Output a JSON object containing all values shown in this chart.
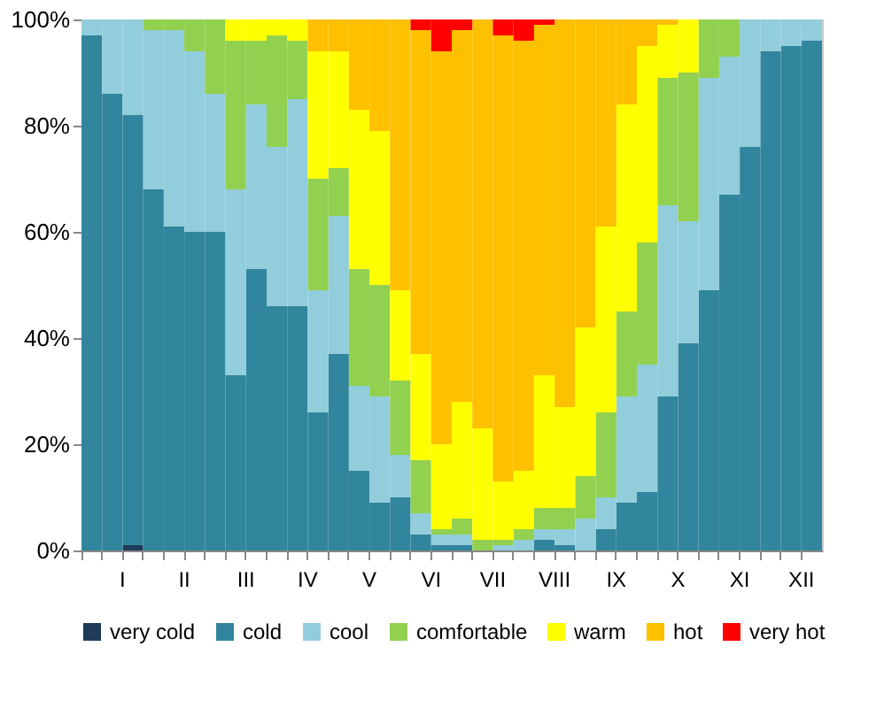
{
  "chart_data": {
    "type": "bar",
    "stacked": true,
    "legend": "bottom",
    "categories": [
      null,
      "I",
      null,
      null,
      "II",
      null,
      null,
      "III",
      null,
      null,
      "IV",
      null,
      null,
      "V",
      null,
      null,
      "VI",
      null,
      null,
      "VII",
      null,
      null,
      "VIII",
      null,
      null,
      "IX",
      null,
      null,
      "X",
      null,
      null,
      "XI",
      null,
      null,
      "XII",
      null
    ],
    "ylim": [
      0,
      100
    ],
    "yticks": [
      {
        "value": 0,
        "label": "0%"
      },
      {
        "value": 20,
        "label": "20%"
      },
      {
        "value": 40,
        "label": "40%"
      },
      {
        "value": 60,
        "label": "60%"
      },
      {
        "value": 80,
        "label": "80%"
      },
      {
        "value": 100,
        "label": "100%"
      }
    ],
    "series": [
      {
        "name": "very cold",
        "color": "#1f3b57",
        "values": [
          0,
          0,
          1,
          0,
          0,
          0,
          0,
          0,
          0,
          0,
          0,
          0,
          0,
          0,
          0,
          0,
          0,
          0,
          0,
          0,
          0,
          0,
          0,
          0,
          0,
          0,
          0,
          0,
          0,
          0,
          0,
          0,
          0,
          0,
          0,
          0
        ]
      },
      {
        "name": "cold",
        "color": "#31859c",
        "values": [
          97,
          86,
          81,
          68,
          61,
          60,
          60,
          33,
          53,
          46,
          46,
          26,
          37,
          15,
          9,
          10,
          3,
          1,
          1,
          0,
          0,
          0,
          2,
          1,
          0,
          4,
          9,
          11,
          29,
          39,
          49,
          67,
          76,
          94,
          95,
          96
        ]
      },
      {
        "name": "cool",
        "color": "#92cddc",
        "values": [
          3,
          14,
          18,
          30,
          37,
          34,
          26,
          35,
          31,
          30,
          39,
          23,
          26,
          16,
          20,
          8,
          4,
          2,
          2,
          0,
          1,
          2,
          2,
          3,
          6,
          6,
          20,
          24,
          36,
          23,
          40,
          26,
          24,
          6,
          5,
          4
        ]
      },
      {
        "name": "comfortable",
        "color": "#92d050",
        "values": [
          0,
          0,
          0,
          2,
          2,
          6,
          14,
          28,
          12,
          21,
          11,
          21,
          9,
          22,
          21,
          14,
          10,
          1,
          3,
          2,
          1,
          2,
          4,
          4,
          8,
          16,
          16,
          23,
          24,
          28,
          11,
          7,
          0,
          0,
          0,
          0
        ]
      },
      {
        "name": "warm",
        "color": "#ffff00",
        "values": [
          0,
          0,
          0,
          0,
          0,
          0,
          0,
          4,
          4,
          3,
          4,
          24,
          22,
          30,
          29,
          17,
          20,
          16,
          22,
          21,
          11,
          11,
          25,
          19,
          28,
          35,
          39,
          37,
          10,
          10,
          0,
          0,
          0,
          0,
          0,
          0
        ]
      },
      {
        "name": "hot",
        "color": "#ffc000",
        "values": [
          0,
          0,
          0,
          0,
          0,
          0,
          0,
          0,
          0,
          0,
          0,
          6,
          6,
          17,
          21,
          51,
          61,
          74,
          70,
          77,
          84,
          81,
          66,
          73,
          58,
          39,
          16,
          5,
          1,
          0,
          0,
          0,
          0,
          0,
          0,
          0
        ]
      },
      {
        "name": "very hot",
        "color": "#ff0000",
        "values": [
          0,
          0,
          0,
          0,
          0,
          0,
          0,
          0,
          0,
          0,
          0,
          0,
          0,
          0,
          0,
          0,
          2,
          6,
          2,
          0,
          3,
          4,
          1,
          0,
          0,
          0,
          0,
          0,
          0,
          0,
          0,
          0,
          0,
          0,
          0,
          0
        ]
      }
    ]
  }
}
